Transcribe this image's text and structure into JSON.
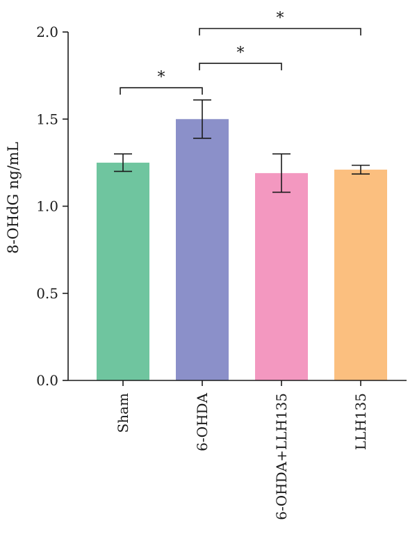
{
  "chart_data": {
    "type": "bar",
    "categories": [
      "Sham",
      "6-OHDA",
      "6-OHDA+LLH135",
      "LLH135"
    ],
    "values": [
      1.25,
      1.5,
      1.19,
      1.21
    ],
    "errors": [
      0.05,
      0.11,
      0.11,
      0.025
    ],
    "colors": [
      "#6fc59f",
      "#8b90c9",
      "#f398c0",
      "#fbbf7f"
    ],
    "ylabel": "8-OHdG ng/mL",
    "ylim": [
      0,
      2.0
    ],
    "yticks": [
      "0.0",
      "0.5",
      "1.0",
      "1.5",
      "2.0"
    ],
    "significance": [
      {
        "from": 0,
        "to": 1,
        "y": 1.68,
        "label": "*"
      },
      {
        "from": 1,
        "to": 2,
        "y": 1.82,
        "label": "*"
      },
      {
        "from": 1,
        "to": 3,
        "y": 2.02,
        "label": "*"
      }
    ]
  }
}
